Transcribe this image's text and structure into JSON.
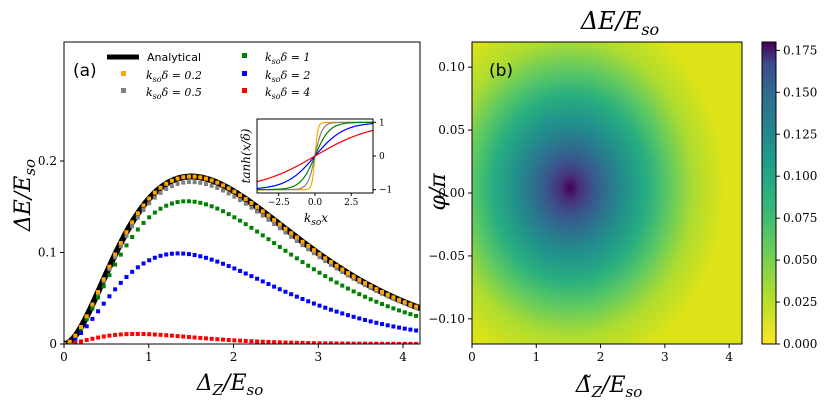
{
  "chart_data": [
    {
      "type": "line",
      "panel_label": "(a)",
      "xlabel": "Δ_Z/E_so",
      "ylabel": "ΔE/E_so",
      "xlim": [
        0,
        4.2
      ],
      "ylim": [
        0,
        0.33
      ],
      "x_ticks": [
        "0",
        "1",
        "2",
        "3",
        "4"
      ],
      "y_ticks": [
        "0",
        "0.1",
        "0.2"
      ],
      "legend_placement": "top",
      "analytical": {
        "name": "Analytical",
        "color": "#000000",
        "peak_x": 1.5,
        "peak_y": 0.183
      },
      "series": [
        {
          "name": "k_so δ = 0.2",
          "color": "#ffa500",
          "style": "dotted",
          "peak_x": 1.5,
          "peak_y": 0.183
        },
        {
          "name": "k_so δ = 0.5",
          "color": "#808080",
          "style": "dotted",
          "peak_x": 1.5,
          "peak_y": 0.177
        },
        {
          "name": "k_so δ = 1",
          "color": "#008000",
          "style": "dotted",
          "peak_x": 1.45,
          "peak_y": 0.156
        },
        {
          "name": "k_so δ = 2",
          "color": "#0000ff",
          "style": "dotted",
          "peak_x": 1.35,
          "peak_y": 0.099
        },
        {
          "name": "k_so δ = 4",
          "color": "#ff0000",
          "style": "dotted",
          "peak_x": 0.85,
          "peak_y": 0.011
        }
      ],
      "inset": {
        "ylabel": "tanh(x/δ)",
        "xlabel": "k_so x",
        "xlim": [
          -4,
          4
        ],
        "ylim": [
          -1.1,
          1.1
        ],
        "x_ticks": [
          "−2.5",
          "0.0",
          "2.5"
        ],
        "y_ticks": [
          "−1",
          "0",
          "1"
        ],
        "curves": [
          {
            "delta": 0.2,
            "color": "#ffa500"
          },
          {
            "delta": 0.5,
            "color": "#808080"
          },
          {
            "delta": 1,
            "color": "#008000"
          },
          {
            "delta": 2,
            "color": "#0000ff"
          },
          {
            "delta": 4,
            "color": "#ff0000"
          }
        ]
      }
    },
    {
      "type": "heatmap",
      "panel_label": "(b)",
      "title": "ΔE/E_so",
      "xlabel": "Δ̃_Z/E_so",
      "ylabel": "φ/π",
      "xlim": [
        0,
        4.2
      ],
      "ylim": [
        -0.12,
        0.12
      ],
      "x_ticks": [
        "0",
        "1",
        "2",
        "3",
        "4"
      ],
      "y_ticks": [
        "−0.10",
        "−0.05",
        "0.00",
        "0.05",
        "0.10"
      ],
      "peak": {
        "x": 1.45,
        "y": 0,
        "value": 0.18
      },
      "colormap": "viridis_r",
      "colorbar": {
        "min": 0,
        "max": 0.18,
        "ticks": [
          "0.000",
          "0.025",
          "0.050",
          "0.075",
          "0.100",
          "0.125",
          "0.150",
          "0.175"
        ]
      }
    }
  ]
}
